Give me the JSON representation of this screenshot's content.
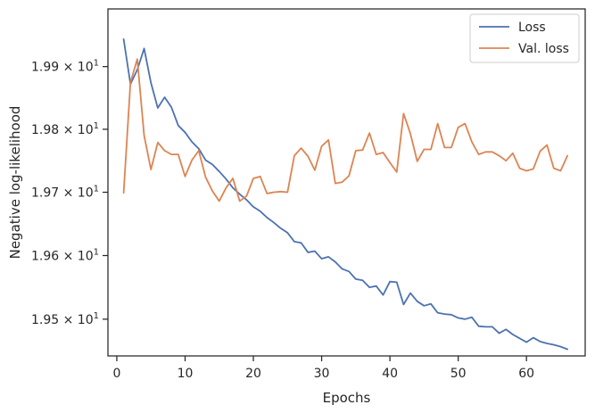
{
  "chart_data": {
    "type": "line",
    "xlabel": "Epochs",
    "ylabel": "Negative log-likelihood",
    "xlim": [
      -1.3,
      68.6
    ],
    "ylim": [
      19.4425,
      19.9925
    ],
    "yscale": "log",
    "grid": false,
    "legend_position": "top-right",
    "x_ticks": [
      0,
      10,
      20,
      30,
      40,
      50,
      60
    ],
    "y_ticks": [
      19.5,
      19.6,
      19.7,
      19.8,
      19.9
    ],
    "y_tick_labels": [
      {
        "mantissa": "1.95",
        "base": "10",
        "exp": "1"
      },
      {
        "mantissa": "1.96",
        "base": "10",
        "exp": "1"
      },
      {
        "mantissa": "1.97",
        "base": "10",
        "exp": "1"
      },
      {
        "mantissa": "1.98",
        "base": "10",
        "exp": "1"
      },
      {
        "mantissa": "1.99",
        "base": "10",
        "exp": "1"
      }
    ],
    "x": [
      1,
      2,
      3,
      4,
      5,
      6,
      7,
      8,
      9,
      10,
      11,
      12,
      13,
      14,
      15,
      16,
      17,
      18,
      19,
      20,
      21,
      22,
      23,
      24,
      25,
      26,
      27,
      28,
      29,
      30,
      31,
      32,
      33,
      34,
      35,
      36,
      37,
      38,
      39,
      40,
      41,
      42,
      43,
      44,
      45,
      46,
      47,
      48,
      49,
      50,
      51,
      52,
      53,
      54,
      55,
      56,
      57,
      58,
      59,
      60,
      61,
      62,
      63,
      64,
      65,
      66
    ],
    "series": [
      {
        "name": "Loss",
        "color": "#4c72b0",
        "values": [
          19.944,
          19.872,
          19.895,
          19.929,
          19.874,
          19.834,
          19.851,
          19.835,
          19.806,
          19.795,
          19.78,
          19.769,
          19.751,
          19.744,
          19.733,
          19.721,
          19.707,
          19.697,
          19.688,
          19.677,
          19.67,
          19.66,
          19.652,
          19.643,
          19.636,
          19.622,
          19.62,
          19.605,
          19.607,
          19.595,
          19.598,
          19.59,
          19.579,
          19.575,
          19.563,
          19.561,
          19.55,
          19.552,
          19.538,
          19.559,
          19.558,
          19.523,
          19.541,
          19.528,
          19.521,
          19.524,
          19.51,
          19.508,
          19.507,
          19.502,
          19.5,
          19.503,
          19.489,
          19.488,
          19.488,
          19.478,
          19.484,
          19.476,
          19.47,
          19.464,
          19.471,
          19.465,
          19.462,
          19.46,
          19.457,
          19.453
        ]
      },
      {
        "name": "Val. loss",
        "color": "#dd8452",
        "values": [
          19.699,
          19.875,
          19.912,
          19.79,
          19.736,
          19.779,
          19.766,
          19.76,
          19.76,
          19.725,
          19.751,
          19.766,
          19.724,
          19.702,
          19.686,
          19.707,
          19.722,
          19.686,
          19.694,
          19.722,
          19.725,
          19.698,
          19.7,
          19.701,
          19.7,
          19.758,
          19.77,
          19.757,
          19.735,
          19.773,
          19.783,
          19.714,
          19.716,
          19.726,
          19.766,
          19.767,
          19.794,
          19.76,
          19.763,
          19.747,
          19.732,
          19.825,
          19.793,
          19.749,
          19.768,
          19.768,
          19.809,
          19.771,
          19.771,
          19.803,
          19.809,
          19.78,
          19.76,
          19.764,
          19.764,
          19.758,
          19.75,
          19.762,
          19.738,
          19.734,
          19.737,
          19.765,
          19.775,
          19.738,
          19.734,
          19.758
        ]
      }
    ]
  }
}
